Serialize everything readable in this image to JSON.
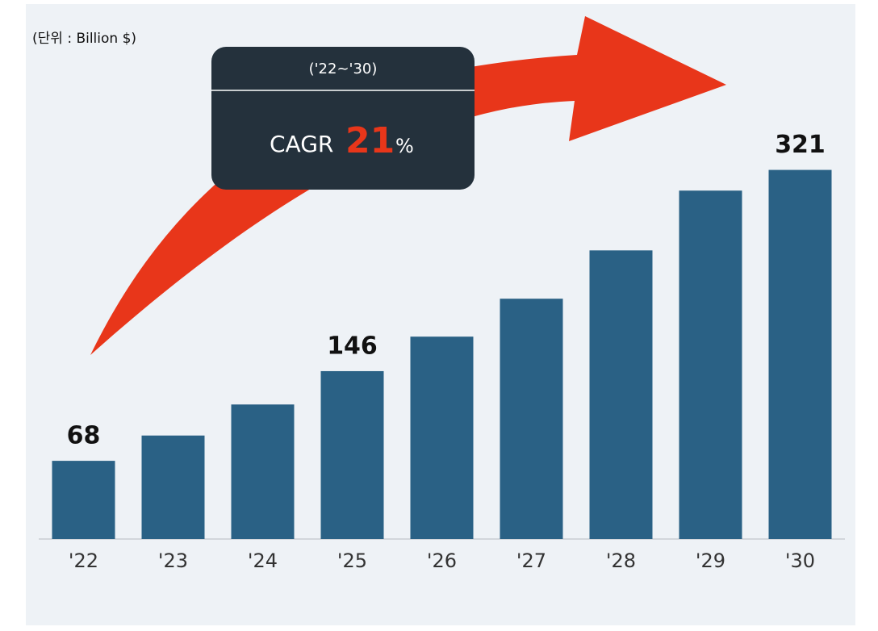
{
  "chart_data": {
    "type": "bar",
    "unit_note": "(단위 : Billion $)",
    "annotation": {
      "period": "('22~'30)",
      "label": "CAGR",
      "rate": "21",
      "unit": "%"
    },
    "categories": [
      "'22",
      "'23",
      "'24",
      "'25",
      "'26",
      "'27",
      "'28",
      "'29",
      "'30"
    ],
    "values": [
      68,
      90,
      117,
      146,
      176,
      209,
      251,
      303,
      321
    ],
    "value_labels": [
      "68",
      null,
      null,
      "146",
      null,
      null,
      null,
      null,
      "321"
    ],
    "color": "#2a6185",
    "ylim": [
      0,
      360
    ]
  }
}
